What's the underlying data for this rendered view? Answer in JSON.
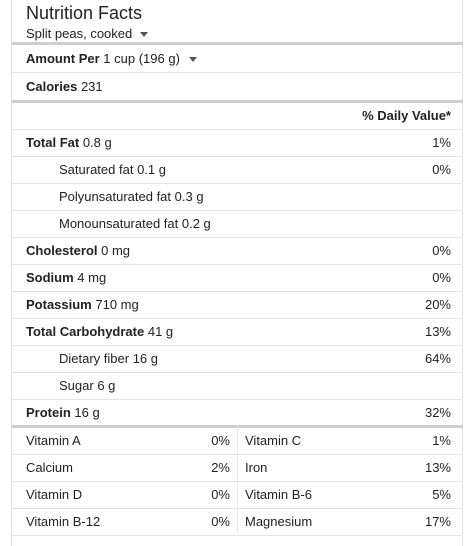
{
  "header": {
    "title": "Nutrition Facts",
    "food": "Split peas, cooked"
  },
  "serving": {
    "label": "Amount Per",
    "value": "1 cup (196 g)"
  },
  "calories": {
    "label": "Calories",
    "value": "231"
  },
  "dv_header": "% Daily Value*",
  "nutrients": [
    {
      "name": "Total Fat",
      "amount": "0.8 g",
      "dv": "1%"
    },
    {
      "name": "Saturated fat",
      "amount": "0.1 g",
      "dv": "0%"
    },
    {
      "name": "Polyunsaturated fat",
      "amount": "0.3 g",
      "dv": ""
    },
    {
      "name": "Monounsaturated fat",
      "amount": "0.2 g",
      "dv": ""
    },
    {
      "name": "Cholesterol",
      "amount": "0 mg",
      "dv": "0%"
    },
    {
      "name": "Sodium",
      "amount": "4 mg",
      "dv": "0%"
    },
    {
      "name": "Potassium",
      "amount": "710 mg",
      "dv": "20%"
    },
    {
      "name": "Total Carbohydrate",
      "amount": "41 g",
      "dv": "13%"
    },
    {
      "name": "Dietary fiber",
      "amount": "16 g",
      "dv": "64%"
    },
    {
      "name": "Sugar",
      "amount": "6 g",
      "dv": ""
    },
    {
      "name": "Protein",
      "amount": "16 g",
      "dv": "32%"
    }
  ],
  "vitamins": [
    {
      "left_name": "Vitamin A",
      "left_dv": "0%",
      "right_name": "Vitamin C",
      "right_dv": "1%"
    },
    {
      "left_name": "Calcium",
      "left_dv": "2%",
      "right_name": "Iron",
      "right_dv": "13%"
    },
    {
      "left_name": "Vitamin D",
      "left_dv": "0%",
      "right_name": "Vitamin B-6",
      "right_dv": "5%"
    },
    {
      "left_name": "Vitamin B-12",
      "left_dv": "0%",
      "right_name": "Magnesium",
      "right_dv": "17%"
    }
  ],
  "icons": {
    "food_dropdown": "caret-down-icon",
    "serving_dropdown": "caret-down-icon"
  }
}
